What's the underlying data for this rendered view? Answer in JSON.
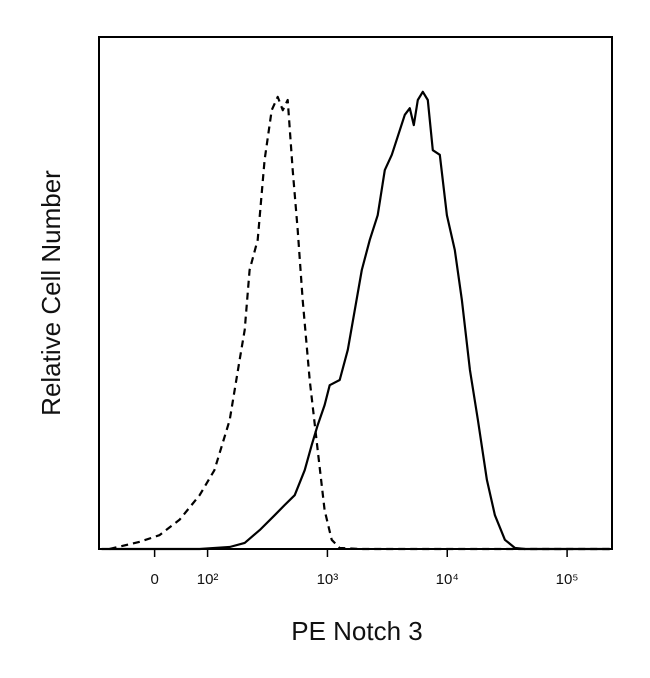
{
  "chart_data": {
    "type": "line",
    "xlabel": "PE Notch 3",
    "ylabel": "Relative Cell Number",
    "xscale": "biexponential",
    "xlim": [
      -105,
      237000
    ],
    "ylim": [
      0,
      100
    ],
    "xticks": [
      0,
      {
        "value": 100,
        "label": "10²"
      },
      {
        "value": 1000,
        "label": "10³"
      },
      {
        "value": 10000,
        "label": "10⁴"
      },
      {
        "value": 100000,
        "label": "10⁵"
      }
    ],
    "series": [
      {
        "color": "#000000",
        "dashed": true,
        "x": [
          -85,
          -28,
          9,
          47,
          85,
          114,
          153,
          185,
          204,
          224,
          262,
          299,
          343,
          385,
          424,
          466,
          513,
          565,
          622,
          711,
          830,
          948,
          1086,
          1267,
          1862,
          228000
        ],
        "values": [
          0,
          1.4,
          2.7,
          5.7,
          10.5,
          15.4,
          25.2,
          36.9,
          42.8,
          54.5,
          60.4,
          76,
          85.7,
          88.3,
          85.7,
          87.7,
          74,
          62.3,
          48.6,
          33,
          19.3,
          7.6,
          1.8,
          0.2,
          0,
          0
        ]
      },
      {
        "color": "#000000",
        "dashed": false,
        "x": [
          -100,
          -9,
          85,
          153,
          204,
          272,
          363,
          440,
          533,
          646,
          739,
          830,
          948,
          1045,
          1267,
          1479,
          1692,
          1936,
          2256,
          2630,
          3010,
          3443,
          4018,
          4424,
          4870,
          5262,
          5680,
          6251,
          6880,
          7580,
          8670,
          9930,
          11570,
          13240,
          15450,
          18020,
          21430,
          24980,
          30290,
          36720,
          44460,
          228000
        ],
        "values": [
          0,
          0,
          0,
          0.4,
          1.2,
          3.7,
          6.6,
          8.6,
          10.5,
          15.4,
          20.3,
          24.2,
          28.1,
          32,
          33,
          38.9,
          46.7,
          54.5,
          60.4,
          65.2,
          74,
          77,
          81.8,
          84.8,
          86.1,
          82.8,
          87.7,
          89.3,
          87.7,
          77.9,
          77,
          65.2,
          58.4,
          48.6,
          35,
          25.2,
          13.5,
          6.6,
          1.8,
          0.2,
          0,
          0
        ]
      }
    ]
  }
}
